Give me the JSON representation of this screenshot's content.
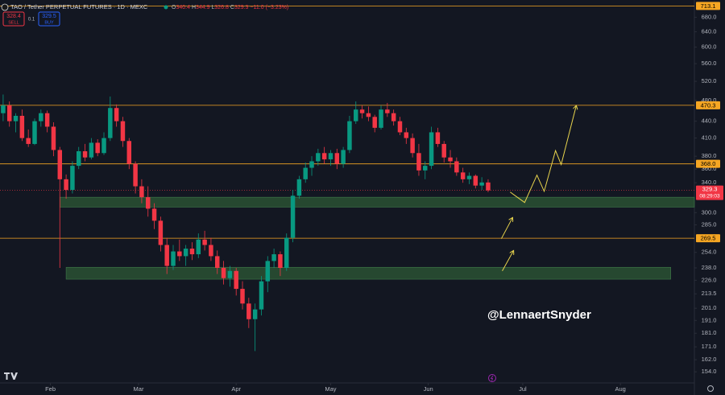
{
  "header": {
    "symbol": "TAO / Tether PERPETUAL FUTURES · 1D · MEXC",
    "ohlc_labels": [
      "O",
      "H",
      "L",
      "C"
    ],
    "change": "−11.0",
    "change_pct": "(−3.23%)"
  },
  "order_panel": {
    "sell_price": 328.4,
    "sell": "SELL",
    "qty": 0.1,
    "buy_price": 329.5,
    "buy": "BUY"
  },
  "watermark": "@LennaertSnyder",
  "countdown": "08:29:03",
  "chart_data": {
    "type": "candlestick",
    "log_scale": true,
    "grid": false,
    "up_color": "#089981",
    "down_color": "#f23645",
    "level_color": "#f5a623",
    "zone_color": "#2d5a36",
    "projection_color": "#e8d44d",
    "x": [
      1,
      3,
      5,
      7,
      9,
      11,
      13,
      15,
      17,
      19,
      21,
      23,
      25,
      27,
      29,
      31,
      33,
      35,
      37,
      39,
      41,
      43,
      45,
      47,
      49,
      51,
      53,
      55,
      57,
      59,
      61,
      63,
      65,
      67,
      69,
      71,
      73,
      75,
      77,
      79,
      81,
      83,
      85,
      87,
      89,
      91,
      93,
      95,
      97,
      99,
      101,
      103,
      105,
      107,
      109,
      111,
      113,
      115,
      117,
      119,
      121,
      123,
      125,
      127,
      129,
      131,
      133,
      135,
      137,
      139,
      141,
      143,
      145,
      147,
      149,
      151,
      153,
      155
    ],
    "open": [
      455,
      470,
      440,
      450,
      410,
      400,
      440,
      455,
      430,
      390,
      345,
      330,
      365,
      388,
      378,
      402,
      385,
      410,
      465,
      440,
      405,
      368,
      335,
      320,
      305,
      290,
      262,
      240,
      255,
      250,
      258,
      252,
      268,
      262,
      250,
      238,
      228,
      235,
      218,
      205,
      192,
      200,
      225,
      245,
      252,
      238,
      270,
      322,
      345,
      362,
      372,
      385,
      375,
      385,
      368,
      390,
      440,
      462,
      455,
      448,
      428,
      462,
      455,
      440,
      420,
      410,
      385,
      358,
      365,
      420,
      400,
      378,
      372,
      355,
      345,
      350,
      336,
      340.4
    ],
    "high": [
      492,
      478,
      455,
      462,
      425,
      445,
      462,
      460,
      438,
      395,
      352,
      372,
      395,
      400,
      410,
      408,
      420,
      488,
      472,
      448,
      410,
      372,
      345,
      335,
      312,
      295,
      270,
      262,
      268,
      262,
      265,
      275,
      278,
      270,
      256,
      245,
      240,
      238,
      225,
      210,
      205,
      230,
      250,
      258,
      255,
      275,
      330,
      350,
      370,
      380,
      392,
      395,
      390,
      392,
      395,
      450,
      478,
      470,
      468,
      452,
      470,
      475,
      462,
      448,
      428,
      418,
      400,
      372,
      430,
      428,
      405,
      390,
      378,
      362,
      355,
      352,
      348,
      344.9
    ],
    "low": [
      440,
      430,
      420,
      405,
      395,
      398,
      430,
      420,
      380,
      238,
      318,
      325,
      360,
      372,
      375,
      380,
      382,
      405,
      430,
      395,
      360,
      325,
      312,
      295,
      280,
      255,
      232,
      236,
      245,
      240,
      246,
      248,
      256,
      245,
      232,
      222,
      220,
      212,
      200,
      185,
      168,
      195,
      215,
      238,
      230,
      235,
      265,
      318,
      340,
      350,
      365,
      368,
      365,
      360,
      362,
      385,
      435,
      445,
      440,
      420,
      425,
      448,
      432,
      415,
      400,
      378,
      350,
      345,
      360,
      395,
      370,
      362,
      350,
      340,
      338,
      332,
      330,
      326.8
    ],
    "close": [
      470,
      440,
      450,
      410,
      400,
      440,
      455,
      430,
      390,
      345,
      330,
      365,
      388,
      378,
      402,
      385,
      410,
      465,
      440,
      405,
      368,
      335,
      320,
      305,
      290,
      262,
      240,
      255,
      250,
      258,
      252,
      268,
      262,
      250,
      238,
      228,
      235,
      218,
      205,
      192,
      200,
      225,
      245,
      252,
      238,
      270,
      322,
      345,
      362,
      372,
      385,
      375,
      385,
      368,
      390,
      440,
      462,
      455,
      448,
      428,
      462,
      455,
      440,
      420,
      410,
      385,
      358,
      365,
      420,
      400,
      378,
      372,
      355,
      345,
      350,
      336,
      340.4,
      329.3
    ],
    "xlim": [
      0,
      220.5
    ],
    "ylim": [
      147,
      731
    ],
    "xticks": [
      {
        "value": 16,
        "label": "Feb"
      },
      {
        "value": 44,
        "label": "Mar"
      },
      {
        "value": 75,
        "label": "Apr"
      },
      {
        "value": 105,
        "label": "May"
      },
      {
        "value": 136,
        "label": "Jun"
      },
      {
        "value": 166,
        "label": "Jul"
      },
      {
        "value": 197,
        "label": "Aug"
      }
    ],
    "yticks": [
      {
        "value": 680,
        "label": "680.0"
      },
      {
        "value": 640,
        "label": "640.0"
      },
      {
        "value": 600,
        "label": "600.0"
      },
      {
        "value": 560,
        "label": "560.0"
      },
      {
        "value": 520,
        "label": "520.0"
      },
      {
        "value": 480,
        "label": "480.0"
      },
      {
        "value": 440,
        "label": "440.0"
      },
      {
        "value": 410,
        "label": "410.0"
      },
      {
        "value": 380,
        "label": "380.0"
      },
      {
        "value": 360,
        "label": "360.0"
      },
      {
        "value": 340,
        "label": "340.0"
      },
      {
        "value": 300,
        "label": "300.0"
      },
      {
        "value": 285,
        "label": "285.0"
      },
      {
        "value": 254,
        "label": "254.0"
      },
      {
        "value": 238,
        "label": "238.0"
      },
      {
        "value": 226,
        "label": "226.0"
      },
      {
        "value": 213.5,
        "label": "213.5"
      },
      {
        "value": 201,
        "label": "201.0"
      },
      {
        "value": 191,
        "label": "191.0"
      },
      {
        "value": 181,
        "label": "181.0"
      },
      {
        "value": 171,
        "label": "171.0"
      },
      {
        "value": 162,
        "label": "162.0"
      },
      {
        "value": 154,
        "label": "154.0"
      }
    ],
    "levels": [
      713.1,
      470.3,
      {
        "value": 368,
        "label": "368.0"
      },
      269.5
    ],
    "zones": [
      {
        "low": 307,
        "high": 320,
        "x1": 19,
        "x2": 221
      },
      {
        "low": 227,
        "high": 238.6,
        "x1": 21,
        "x2": 213
      }
    ],
    "projections": [
      {
        "x": [
          162,
          166.6,
          170.5,
          172.8,
          176.4,
          178.2,
          183
        ],
        "y": [
          327,
          313,
          351,
          328,
          389,
          367,
          470
        ]
      },
      {
        "x": [
          159.2,
          162.8
        ],
        "y": [
          269,
          294
        ]
      },
      {
        "x": [
          159.5,
          163.1
        ],
        "y": [
          235,
          256
        ]
      }
    ]
  }
}
